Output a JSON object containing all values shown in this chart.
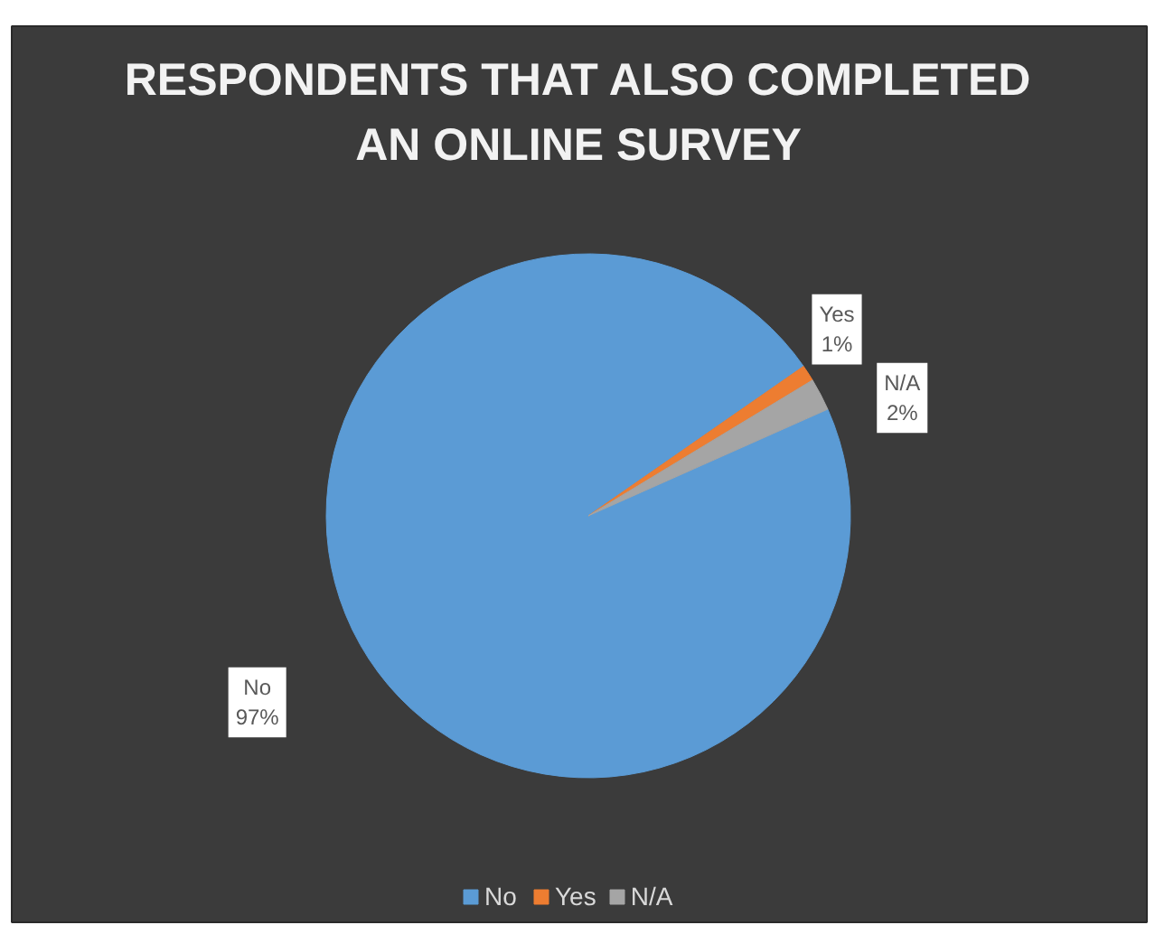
{
  "chart_data": {
    "type": "pie",
    "title": "RESPONDENTS THAT ALSO COMPLETED AN ONLINE SURVEY",
    "categories": [
      "No",
      "Yes",
      "N/A"
    ],
    "values": [
      97,
      1,
      2
    ],
    "colors": [
      "#5b9bd5",
      "#ed7d31",
      "#a5a5a5"
    ],
    "value_labels": [
      "97%",
      "1%",
      "2%"
    ],
    "legend": "bottom"
  }
}
